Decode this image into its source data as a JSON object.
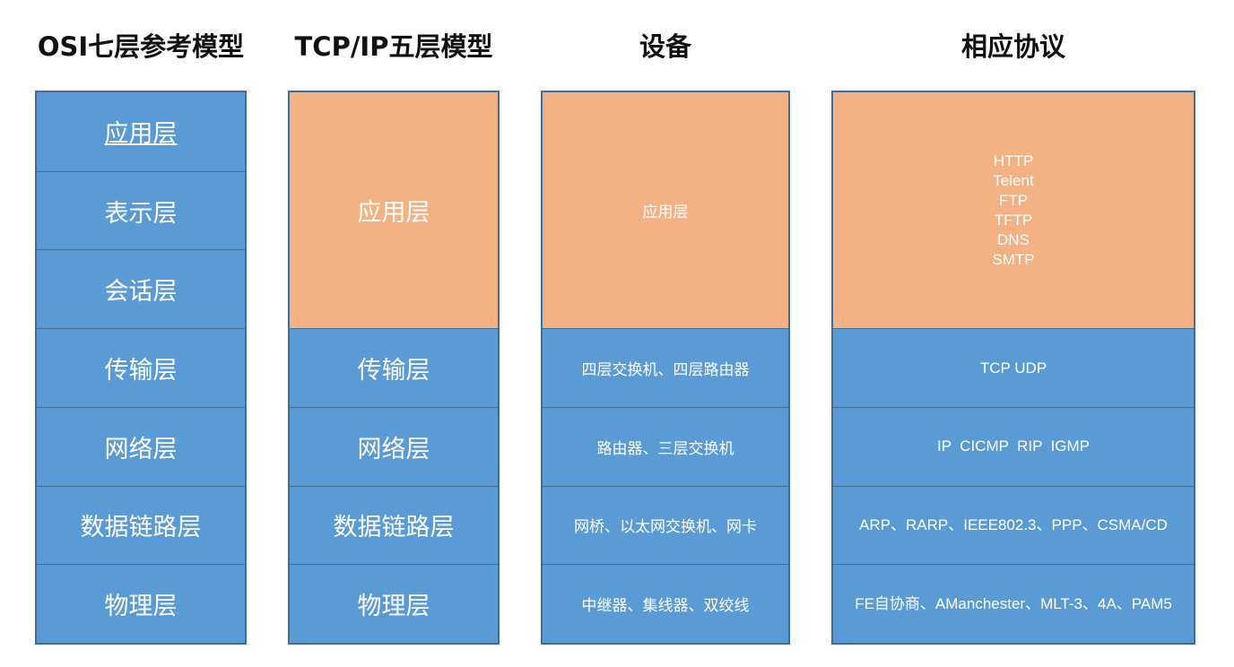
{
  "titles": {
    "osi": "OSI七层参考模型",
    "tcpip": "TCP/IP五层模型",
    "devices": "设备",
    "protocols": "相应协议"
  },
  "osi_layers": [
    "应用层",
    "表示层",
    "会话层",
    "传输层",
    "网络层",
    "数据链路层",
    "物理层"
  ],
  "tcpip_layers": [
    "应用层",
    "传输层",
    "网络层",
    "数据链路层",
    "物理层"
  ],
  "devices": [
    "应用层",
    "四层交换机、四层路由器",
    "路由器、三层交换机",
    "网桥、以太网交换机、网卡",
    "中继器、集线器、双绞线"
  ],
  "protocols": {
    "application": [
      "HTTP",
      "Telent",
      "FTP",
      "TFTP",
      "DNS",
      "SMTP"
    ],
    "transport": "TCP UDP",
    "network": "IP  CICMP  RIP  IGMP",
    "datalink": "ARP、RARP、IEEE802.3、PPP、CSMA/CD",
    "physical": "FE自协商、AManchester、MLT-3、4A、PAM5"
  },
  "colors": {
    "blue": "#5b9bd5",
    "orange": "#f4b183",
    "border": "#3f6f98"
  }
}
